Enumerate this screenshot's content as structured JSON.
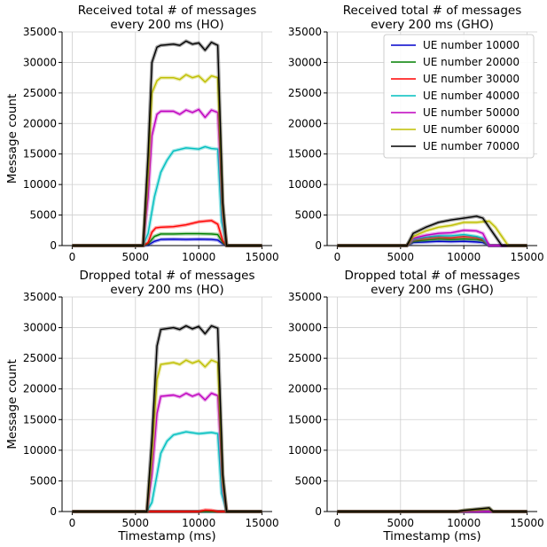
{
  "chart_data": [
    {
      "type": "line",
      "title": "Received total # of messages\nevery 200 ms (HO)",
      "ylabel": "Message count",
      "xlabel": "",
      "xlim": [
        -800,
        15800
      ],
      "ylim": [
        0,
        35000
      ],
      "xticks": [
        0,
        5000,
        10000,
        15000
      ],
      "yticks": [
        0,
        5000,
        10000,
        15000,
        20000,
        25000,
        30000,
        35000
      ],
      "grid": true,
      "legend": false,
      "series": [
        {
          "name": "UE number 10000",
          "color": "#0000cc",
          "x": [
            0,
            5200,
            5600,
            6000,
            6500,
            7000,
            8000,
            9000,
            10000,
            11000,
            11500,
            11900,
            12200,
            15000
          ],
          "y": [
            0,
            0,
            0,
            100,
            700,
            1000,
            1050,
            1000,
            1050,
            1000,
            900,
            300,
            0,
            0
          ]
        },
        {
          "name": "UE number 20000",
          "color": "#008000",
          "x": [
            0,
            5200,
            5600,
            6000,
            6500,
            7000,
            8000,
            9000,
            10000,
            11000,
            11500,
            11900,
            12200,
            15000
          ],
          "y": [
            0,
            0,
            0,
            300,
            1500,
            1900,
            1900,
            1950,
            1950,
            1900,
            1800,
            500,
            0,
            0
          ]
        },
        {
          "name": "UE number 30000",
          "color": "#ff0000",
          "x": [
            0,
            5200,
            5600,
            6000,
            6300,
            6600,
            7000,
            8000,
            9000,
            10000,
            10500,
            11000,
            11500,
            11900,
            12200,
            15000
          ],
          "y": [
            0,
            0,
            0,
            500,
            2200,
            2900,
            3000,
            3100,
            3400,
            3900,
            4000,
            4100,
            3500,
            800,
            0,
            0
          ]
        },
        {
          "name": "UE number 40000",
          "color": "#00bfbf",
          "x": [
            0,
            5200,
            5600,
            6000,
            6500,
            7000,
            7500,
            8000,
            9000,
            10000,
            10500,
            11000,
            11500,
            11800,
            12200,
            15000
          ],
          "y": [
            0,
            0,
            0,
            2000,
            8000,
            12000,
            14000,
            15500,
            16000,
            15800,
            16200,
            15900,
            15800,
            4000,
            0,
            0
          ]
        },
        {
          "name": "UE number 50000",
          "color": "#bf00bf",
          "x": [
            0,
            5200,
            5600,
            6000,
            6300,
            6700,
            7000,
            8000,
            8500,
            9000,
            9500,
            10000,
            10500,
            11000,
            11500,
            11900,
            12200,
            15000
          ],
          "y": [
            0,
            0,
            0,
            8000,
            18000,
            21500,
            22000,
            22000,
            21500,
            22200,
            21800,
            22300,
            21000,
            22200,
            21800,
            5000,
            0,
            0
          ]
        },
        {
          "name": "UE number 60000",
          "color": "#bfbf00",
          "x": [
            0,
            5200,
            5600,
            6000,
            6300,
            6700,
            7000,
            8000,
            8500,
            9000,
            9500,
            10000,
            10500,
            11000,
            11500,
            11900,
            12200,
            15000
          ],
          "y": [
            0,
            0,
            0,
            12000,
            25000,
            27000,
            27500,
            27500,
            27200,
            28000,
            27500,
            27800,
            26800,
            27800,
            27500,
            6000,
            0,
            0
          ]
        },
        {
          "name": "UE number 70000",
          "color": "#000000",
          "x": [
            0,
            5200,
            5600,
            6000,
            6300,
            6700,
            7000,
            8000,
            8500,
            9000,
            9500,
            10000,
            10500,
            11000,
            11500,
            11900,
            12200,
            15000
          ],
          "y": [
            0,
            0,
            0,
            15000,
            30000,
            32500,
            32800,
            33000,
            32800,
            33500,
            33000,
            33200,
            32000,
            33300,
            32800,
            7000,
            0,
            0
          ]
        }
      ]
    },
    {
      "type": "line",
      "title": "Received total # of messages\nevery 200 ms (GHO)",
      "ylabel": "",
      "xlabel": "",
      "xlim": [
        -800,
        15800
      ],
      "ylim": [
        0,
        35000
      ],
      "xticks": [
        0,
        5000,
        10000,
        15000
      ],
      "yticks": [
        0,
        5000,
        10000,
        15000,
        20000,
        25000,
        30000,
        35000
      ],
      "grid": true,
      "legend": true,
      "legend_loc": "top-right",
      "series": [
        {
          "name": "UE number 10000",
          "color": "#0000cc",
          "x": [
            0,
            5000,
            5500,
            6000,
            7000,
            8000,
            9000,
            10000,
            11000,
            11500,
            12000,
            15000
          ],
          "y": [
            0,
            0,
            0,
            500,
            600,
            700,
            650,
            700,
            600,
            500,
            0,
            0
          ]
        },
        {
          "name": "UE number 20000",
          "color": "#008000",
          "x": [
            0,
            5000,
            5500,
            6000,
            7000,
            8000,
            9000,
            10000,
            11000,
            11500,
            12000,
            15000
          ],
          "y": [
            0,
            0,
            0,
            700,
            900,
            1100,
            1000,
            1100,
            1000,
            800,
            0,
            0
          ]
        },
        {
          "name": "UE number 30000",
          "color": "#ff0000",
          "x": [
            0,
            5000,
            5500,
            6000,
            7000,
            8000,
            9000,
            10000,
            11000,
            11500,
            12000,
            15000
          ],
          "y": [
            0,
            0,
            0,
            900,
            1200,
            1400,
            1300,
            1500,
            1300,
            1000,
            0,
            0
          ]
        },
        {
          "name": "UE number 40000",
          "color": "#00bfbf",
          "x": [
            0,
            5000,
            5500,
            6000,
            7000,
            8000,
            9000,
            10000,
            11000,
            11500,
            12000,
            15000
          ],
          "y": [
            0,
            0,
            0,
            1000,
            1400,
            1600,
            1600,
            1800,
            1500,
            1200,
            0,
            0
          ]
        },
        {
          "name": "UE number 50000",
          "color": "#bf00bf",
          "x": [
            0,
            5000,
            5500,
            6000,
            7000,
            8000,
            9000,
            10000,
            11000,
            11500,
            12000,
            15000
          ],
          "y": [
            0,
            0,
            0,
            1200,
            1700,
            2000,
            2100,
            2500,
            2400,
            2000,
            0,
            0
          ]
        },
        {
          "name": "UE number 60000",
          "color": "#bfbf00",
          "x": [
            0,
            5000,
            5500,
            6000,
            7000,
            8000,
            9000,
            10000,
            11000,
            12000,
            12500,
            13000,
            13500,
            15000
          ],
          "y": [
            0,
            0,
            0,
            1500,
            2400,
            3000,
            3300,
            3800,
            3800,
            4000,
            3000,
            1500,
            0,
            0
          ]
        },
        {
          "name": "UE number 70000",
          "color": "#000000",
          "x": [
            0,
            5000,
            5500,
            6000,
            7000,
            8000,
            9000,
            10000,
            11000,
            11500,
            12000,
            12500,
            13000,
            15000
          ],
          "y": [
            0,
            0,
            0,
            2000,
            3000,
            3800,
            4200,
            4500,
            4800,
            4500,
            3000,
            1500,
            0,
            0
          ]
        }
      ]
    },
    {
      "type": "line",
      "title": "Dropped total # of messages\nevery 200 ms (HO)",
      "ylabel": "Message count",
      "xlabel": "Timestamp (ms)",
      "xlim": [
        -800,
        15800
      ],
      "ylim": [
        0,
        35000
      ],
      "xticks": [
        0,
        5000,
        10000,
        15000
      ],
      "yticks": [
        0,
        5000,
        10000,
        15000,
        20000,
        25000,
        30000,
        35000
      ],
      "grid": true,
      "legend": false,
      "series": [
        {
          "name": "UE number 10000",
          "color": "#0000cc",
          "x": [
            0,
            15000
          ],
          "y": [
            0,
            0
          ]
        },
        {
          "name": "UE number 20000",
          "color": "#008000",
          "x": [
            0,
            15000
          ],
          "y": [
            0,
            0
          ]
        },
        {
          "name": "UE number 30000",
          "color": "#ff0000",
          "x": [
            0,
            10000,
            10500,
            11000,
            11500,
            15000
          ],
          "y": [
            0,
            0,
            250,
            200,
            0,
            0
          ]
        },
        {
          "name": "UE number 40000",
          "color": "#00bfbf",
          "x": [
            0,
            5500,
            5900,
            6300,
            6700,
            7000,
            7500,
            8000,
            9000,
            10000,
            10500,
            11000,
            11500,
            11800,
            12200,
            15000
          ],
          "y": [
            0,
            0,
            0,
            1500,
            6000,
            9500,
            11500,
            12500,
            13000,
            12700,
            12800,
            12900,
            12700,
            3000,
            0,
            0
          ]
        },
        {
          "name": "UE number 50000",
          "color": "#bf00bf",
          "x": [
            0,
            5500,
            5900,
            6300,
            6700,
            7000,
            8000,
            8500,
            9000,
            9500,
            10000,
            10500,
            11000,
            11500,
            11900,
            12200,
            15000
          ],
          "y": [
            0,
            0,
            0,
            6000,
            16000,
            18800,
            19000,
            18700,
            19300,
            18800,
            19200,
            18200,
            19300,
            18900,
            4000,
            0,
            0
          ]
        },
        {
          "name": "UE number 60000",
          "color": "#bfbf00",
          "x": [
            0,
            5500,
            5900,
            6300,
            6700,
            7000,
            8000,
            8500,
            9000,
            9500,
            10000,
            10500,
            11000,
            11500,
            11900,
            12200,
            15000
          ],
          "y": [
            0,
            0,
            0,
            9000,
            21500,
            24000,
            24300,
            24000,
            24700,
            24200,
            24600,
            23600,
            24700,
            24300,
            5000,
            0,
            0
          ]
        },
        {
          "name": "UE number 70000",
          "color": "#000000",
          "x": [
            0,
            5500,
            5900,
            6300,
            6700,
            7000,
            8000,
            8500,
            9000,
            9500,
            10000,
            10500,
            11000,
            11500,
            11900,
            12200,
            15000
          ],
          "y": [
            0,
            0,
            0,
            12000,
            27000,
            29700,
            30000,
            29700,
            30300,
            29800,
            30200,
            29000,
            30300,
            29900,
            6000,
            0,
            0
          ]
        }
      ]
    },
    {
      "type": "line",
      "title": "Dropped total # of messages\nevery 200 ms (GHO)",
      "ylabel": "",
      "xlabel": "Timestamp (ms)",
      "xlim": [
        -800,
        15800
      ],
      "ylim": [
        0,
        35000
      ],
      "xticks": [
        0,
        5000,
        10000,
        15000
      ],
      "yticks": [
        0,
        5000,
        10000,
        15000,
        20000,
        25000,
        30000,
        35000
      ],
      "grid": true,
      "legend": false,
      "series": [
        {
          "name": "UE number 10000",
          "color": "#0000cc",
          "x": [
            0,
            15000
          ],
          "y": [
            0,
            0
          ]
        },
        {
          "name": "UE number 20000",
          "color": "#008000",
          "x": [
            0,
            15000
          ],
          "y": [
            0,
            0
          ]
        },
        {
          "name": "UE number 30000",
          "color": "#ff0000",
          "x": [
            0,
            15000
          ],
          "y": [
            0,
            0
          ]
        },
        {
          "name": "UE number 40000",
          "color": "#00bfbf",
          "x": [
            0,
            15000
          ],
          "y": [
            0,
            0
          ]
        },
        {
          "name": "UE number 50000",
          "color": "#bf00bf",
          "x": [
            0,
            15000
          ],
          "y": [
            0,
            0
          ]
        },
        {
          "name": "UE number 60000",
          "color": "#bfbf00",
          "x": [
            0,
            9500,
            10000,
            10500,
            11000,
            11500,
            12000,
            12300,
            15000
          ],
          "y": [
            0,
            0,
            150,
            250,
            300,
            400,
            500,
            0,
            0
          ]
        },
        {
          "name": "UE number 70000",
          "color": "#000000",
          "x": [
            0,
            9500,
            10000,
            10500,
            11000,
            11500,
            12000,
            12300,
            15000
          ],
          "y": [
            0,
            0,
            200,
            300,
            400,
            500,
            600,
            0,
            0
          ]
        }
      ]
    }
  ]
}
